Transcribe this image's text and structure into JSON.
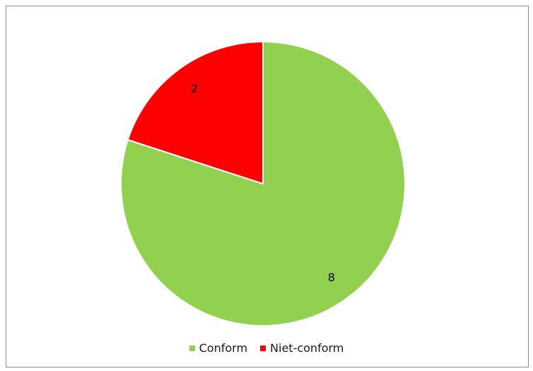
{
  "chart_data": {
    "type": "pie",
    "categories": [
      "Conform",
      "Niet-conform"
    ],
    "values": [
      8,
      2
    ],
    "colors": [
      "#92d050",
      "#ff0000"
    ],
    "data_labels": [
      "8",
      "2"
    ],
    "legend_position": "bottom",
    "title": ""
  }
}
